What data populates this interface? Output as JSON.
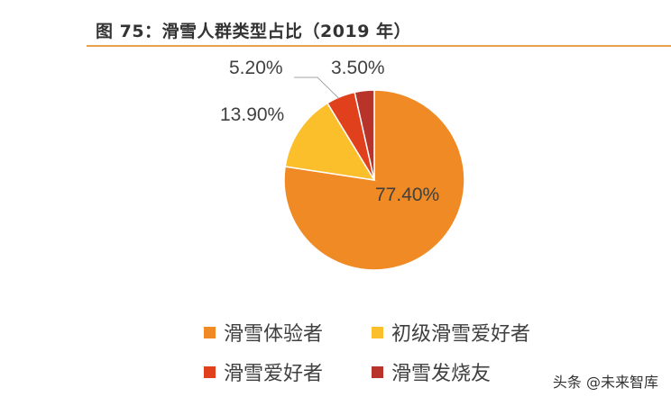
{
  "figure": {
    "title": "图 75：滑雪人群类型占比（2019 年）"
  },
  "chart_data": {
    "type": "pie",
    "start_angle_deg": 0,
    "direction": "clockwise",
    "categories": [
      "滑雪体验者",
      "初级滑雪爱好者",
      "滑雪爱好者",
      "滑雪发烧友"
    ],
    "values": [
      77.4,
      13.9,
      5.2,
      3.5
    ],
    "data_labels": [
      "77.40%",
      "13.90%",
      "5.20%",
      "3.50%"
    ],
    "colors": [
      "#f08a24",
      "#fbbf2c",
      "#e0401c",
      "#b8342a"
    ],
    "legend_position": "bottom"
  },
  "watermark": "头条 @未来智库"
}
